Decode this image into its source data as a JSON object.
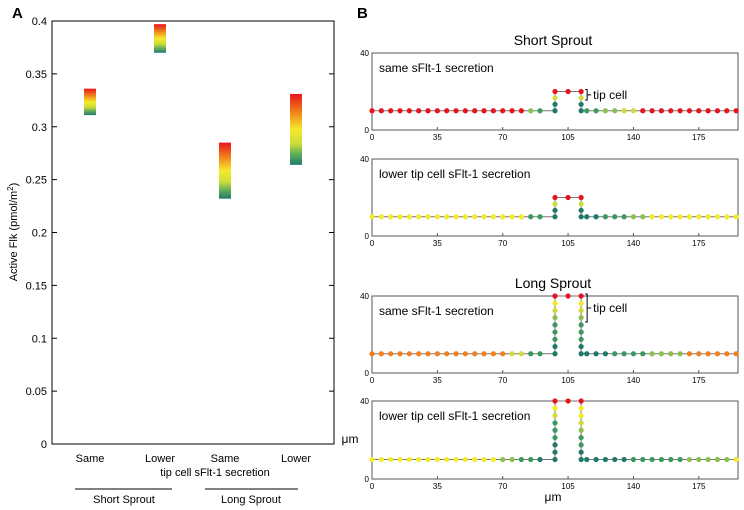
{
  "panel_a": {
    "label": "A",
    "ylabel": "Active Flk (pmol/m",
    "ylabel_sup": "2",
    "ylabel_close": ")",
    "ticks": [
      "0",
      "0.05",
      "0.1",
      "0.15",
      "0.2",
      "0.25",
      "0.3",
      "0.35",
      "0.4"
    ],
    "xlabels": [
      "Same",
      "Lower",
      "Same",
      "Lower"
    ],
    "sublabel": "tip cell sFlt-1 secretion",
    "groups": [
      "Short Sprout",
      "Long Sprout"
    ]
  },
  "panel_b": {
    "label": "B",
    "short_title": "Short Sprout",
    "long_title": "Long Sprout",
    "subplot_labels": [
      "same sFlt-1 secretion",
      "lower tip cell sFlt-1 secretion",
      "same sFlt-1 secretion",
      "lower tip cell sFlt-1 secretion"
    ],
    "tip_label": "tip cell",
    "xticks": [
      "0",
      "35",
      "70",
      "105",
      "140",
      "175"
    ],
    "yticks": [
      "0",
      "40"
    ],
    "ylabel": "μm",
    "xlabel": "μm"
  },
  "chart_data": [
    {
      "type": "bar",
      "title": "",
      "categories": [
        "Same",
        "Lower",
        "Same",
        "Lower"
      ],
      "groups": [
        "Short Sprout",
        "Short Sprout",
        "Long Sprout",
        "Long Sprout"
      ],
      "ranges": [
        [
          0.311,
          0.336
        ],
        [
          0.37,
          0.397
        ],
        [
          0.232,
          0.285
        ],
        [
          0.264,
          0.331
        ]
      ],
      "ylabel": "Active Flk (pmol/m2)",
      "xlabel": "tip cell sFlt-1 secretion",
      "ylim": [
        0,
        0.4
      ]
    },
    {
      "type": "scatter",
      "titles": [
        "Short Sprout",
        "Long Sprout"
      ],
      "panels": [
        "same sFlt-1 secretion",
        "lower tip cell sFlt-1 secretion",
        "same sFlt-1 secretion",
        "lower tip cell sFlt-1 secretion"
      ],
      "xlim": [
        0,
        196
      ],
      "ylim": [
        0,
        40
      ],
      "xlabel": "μm",
      "ylabel": "μm",
      "baseline_y": 10,
      "sprout_x": [
        98,
        112
      ],
      "sprout_top_y": [
        20,
        20,
        40,
        40
      ]
    }
  ],
  "colors": {
    "red": "#e8141c",
    "orange": "#f07f1c",
    "yellow": "#f5ea2a",
    "ygreen": "#cddc3a",
    "lgreen": "#8cc04f",
    "green": "#3a9a5e",
    "teal": "#1f7a6a"
  }
}
